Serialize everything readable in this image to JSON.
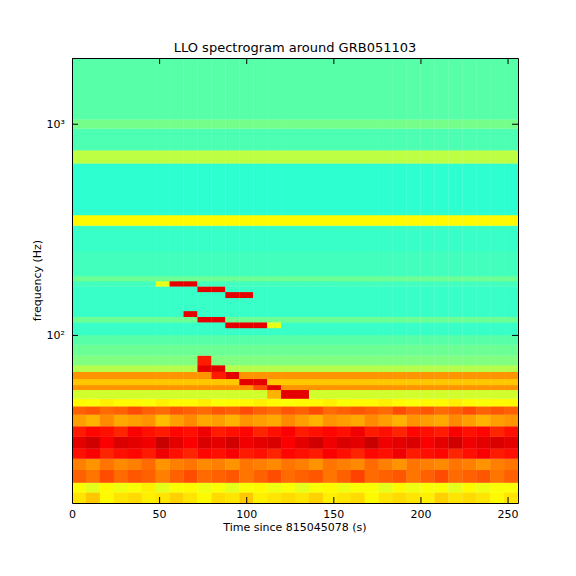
{
  "chart_data": {
    "type": "heatmap",
    "title": "LLO spectrogram around GRB051103",
    "x_label": "Time since 815045078 (s)",
    "y_label": "frequency (Hz)",
    "log": "y",
    "xlim": [
      0,
      256
    ],
    "ylim": [
      16,
      2048
    ],
    "xticks": [
      0,
      50,
      100,
      150,
      200,
      250
    ],
    "yticks": [
      {
        "value": 100,
        "label": "10²"
      },
      {
        "value": 1000,
        "label": "10³"
      }
    ],
    "zlim": [
      0,
      10
    ],
    "x_bins": [
      0,
      8,
      16,
      24,
      32,
      40,
      48,
      56,
      64,
      72,
      80,
      88,
      96,
      104,
      112,
      120,
      128,
      136,
      144,
      152,
      160,
      168,
      176,
      184,
      192,
      200,
      208,
      216,
      224,
      232,
      240,
      248,
      256
    ],
    "y_bins": [
      16,
      18,
      20,
      23,
      26,
      29,
      33,
      37,
      42,
      46,
      50,
      55,
      58,
      62,
      67,
      72,
      80,
      90,
      100,
      108,
      115,
      122,
      130,
      150,
      160,
      170,
      180,
      190,
      250,
      330,
      370,
      650,
      750,
      950,
      1050,
      2048
    ],
    "cells": [
      [
        6.5,
        6.8,
        6.3,
        6.5,
        6.6,
        6.4,
        6.5,
        6.7,
        6.5,
        6.3,
        6.6,
        6.5,
        6.8,
        6.4,
        6.5,
        6.6,
        6.5,
        6.7,
        6.4,
        6.5,
        6.6,
        6.3,
        6.5,
        6.6,
        6.5,
        6.4,
        6.7,
        6.5,
        6.6,
        6.5,
        6.3,
        6.5
      ],
      [
        6.2,
        6.0,
        6.3,
        6.1,
        6.2,
        6.4,
        6.0,
        6.2,
        6.3,
        6.1,
        6.2,
        6.0,
        6.2,
        6.3,
        6.1,
        6.2,
        6.0,
        6.2,
        6.3,
        6.1,
        6.2,
        6.2,
        6.0,
        6.3,
        6.1,
        6.2,
        6.2,
        6.0,
        6.3,
        6.1,
        6.2,
        6.2
      ],
      [
        7.8,
        7.6,
        8.0,
        7.7,
        7.9,
        7.8,
        7.5,
        7.8,
        8.0,
        7.7,
        7.8,
        7.9,
        7.6,
        7.8,
        8.0,
        7.7,
        7.8,
        7.9,
        7.6,
        7.8,
        8.1,
        7.7,
        7.8,
        7.9,
        7.6,
        7.8,
        8.0,
        7.7,
        7.8,
        7.9,
        7.6,
        7.8
      ],
      [
        7.5,
        7.3,
        7.6,
        7.4,
        7.5,
        7.7,
        7.3,
        7.5,
        7.6,
        7.4,
        7.5,
        7.3,
        7.6,
        7.5,
        7.4,
        7.6,
        7.5,
        7.3,
        7.6,
        7.5,
        7.4,
        7.7,
        7.5,
        7.3,
        7.6,
        7.5,
        7.4,
        7.6,
        7.5,
        7.3,
        7.5,
        7.6
      ],
      [
        8.6,
        8.8,
        8.4,
        8.6,
        8.7,
        8.5,
        8.9,
        8.6,
        8.4,
        8.7,
        8.6,
        8.8,
        8.5,
        8.6,
        8.4,
        8.7,
        8.6,
        8.5,
        8.8,
        8.6,
        8.4,
        8.7,
        8.6,
        8.9,
        8.5,
        8.6,
        8.7,
        8.4,
        8.6,
        8.8,
        8.5,
        8.6
      ],
      [
        9.0,
        9.2,
        8.8,
        9.1,
        9.0,
        8.9,
        9.3,
        9.0,
        8.8,
        9.1,
        9.0,
        9.2,
        8.9,
        9.0,
        9.1,
        8.8,
        9.0,
        9.2,
        8.9,
        9.1,
        9.0,
        9.3,
        8.9,
        9.0,
        9.1,
        8.8,
        9.0,
        9.2,
        8.9,
        9.0,
        9.1,
        9.0
      ],
      [
        8.5,
        8.7,
        8.6,
        8.4,
        8.8,
        8.6,
        8.5,
        8.7,
        8.6,
        8.9,
        8.5,
        8.6,
        8.7,
        8.4,
        8.6,
        8.8,
        8.5,
        8.6,
        8.7,
        8.6,
        8.9,
        8.5,
        8.6,
        8.4,
        8.7,
        8.6,
        8.5,
        8.8,
        8.6,
        8.7,
        8.4,
        8.6
      ],
      [
        7.2,
        7.0,
        7.4,
        7.1,
        7.2,
        7.3,
        6.9,
        7.2,
        7.4,
        7.1,
        7.2,
        7.0,
        7.3,
        7.2,
        7.1,
        7.4,
        7.2,
        7.0,
        7.3,
        7.2,
        7.1,
        7.4,
        7.2,
        7.0,
        7.3,
        7.2,
        7.1,
        7.4,
        7.2,
        7.0,
        7.2,
        7.3
      ],
      [
        7.8,
        7.9,
        7.7,
        7.8,
        8.0,
        7.8,
        7.7,
        7.9,
        7.8,
        7.7,
        7.9,
        7.8,
        8.0,
        7.8,
        7.7,
        7.9,
        7.8,
        8.0,
        7.7,
        7.8,
        7.9,
        7.8,
        7.7,
        8.0,
        7.8,
        7.9,
        7.7,
        7.8,
        8.0,
        7.8,
        7.9,
        7.8
      ],
      [
        6.3,
        6.2,
        6.4,
        6.3,
        6.3,
        6.2,
        6.4,
        6.3,
        6.3,
        6.4,
        6.2,
        6.3,
        6.3,
        6.4,
        6.3,
        6.2,
        6.3,
        6.3,
        6.4,
        6.2,
        6.3,
        6.3,
        6.4,
        6.3,
        6.2,
        6.3,
        6.3,
        6.4,
        6.3,
        6.2,
        6.3,
        6.3
      ],
      [
        5.8,
        5.8,
        5.8,
        5.8,
        5.8,
        5.8,
        5.8,
        5.8,
        5.8,
        5.8,
        5.8,
        5.8,
        5.8,
        5.8,
        7.0,
        9.0,
        9.0,
        5.8,
        5.8,
        5.8,
        5.8,
        5.8,
        5.8,
        5.8,
        5.8,
        5.8,
        5.8,
        5.8,
        5.8,
        5.8,
        5.8,
        5.8
      ],
      [
        7.3,
        7.3,
        7.3,
        7.3,
        7.3,
        7.3,
        7.3,
        7.3,
        7.3,
        7.3,
        7.3,
        7.3,
        7.3,
        8.0,
        9.0,
        7.3,
        7.3,
        7.3,
        7.3,
        7.3,
        7.3,
        7.3,
        7.3,
        7.3,
        7.3,
        7.3,
        7.3,
        7.3,
        7.3,
        7.3,
        7.3,
        7.3
      ],
      [
        6.8,
        6.8,
        6.8,
        6.8,
        6.8,
        6.8,
        6.8,
        6.8,
        6.8,
        6.8,
        6.8,
        6.8,
        9.0,
        9.0,
        6.8,
        6.8,
        6.8,
        6.8,
        6.8,
        6.8,
        6.8,
        6.8,
        6.8,
        6.8,
        6.8,
        6.8,
        6.8,
        6.8,
        6.8,
        6.8,
        6.8,
        6.8
      ],
      [
        7.3,
        7.3,
        7.3,
        7.3,
        7.3,
        7.3,
        7.3,
        7.3,
        7.3,
        7.3,
        8.5,
        9.0,
        7.3,
        7.3,
        7.3,
        7.3,
        7.3,
        7.3,
        7.3,
        7.3,
        7.3,
        7.3,
        7.3,
        7.3,
        7.3,
        7.3,
        7.3,
        7.3,
        7.3,
        7.3,
        7.3,
        7.3
      ],
      [
        5.5,
        5.5,
        5.5,
        5.5,
        5.5,
        5.5,
        5.5,
        5.5,
        5.5,
        9.0,
        9.0,
        5.5,
        5.5,
        5.5,
        5.5,
        5.5,
        5.5,
        5.5,
        5.5,
        5.5,
        5.5,
        5.5,
        5.5,
        5.5,
        5.5,
        5.5,
        5.5,
        5.5,
        5.5,
        5.5,
        5.5,
        5.5
      ],
      [
        5.0,
        5.0,
        5.0,
        5.0,
        5.0,
        5.0,
        5.0,
        5.0,
        5.0,
        8.5,
        5.0,
        5.0,
        5.0,
        5.0,
        5.0,
        5.0,
        5.0,
        5.0,
        5.0,
        5.0,
        5.0,
        5.0,
        5.0,
        5.0,
        5.0,
        5.0,
        5.0,
        5.0,
        5.0,
        5.0,
        5.0,
        5.0
      ],
      [
        4.8,
        4.8,
        4.8,
        4.8,
        4.8,
        4.8,
        4.8,
        4.8,
        4.8,
        4.8,
        4.8,
        4.8,
        4.8,
        4.8,
        4.8,
        4.8,
        4.8,
        4.8,
        4.8,
        4.8,
        4.8,
        4.8,
        4.8,
        4.8,
        4.8,
        4.8,
        4.8,
        4.8,
        4.8,
        4.8,
        4.8,
        4.8
      ],
      [
        4.6,
        4.6,
        4.6,
        4.6,
        4.6,
        4.6,
        4.6,
        4.6,
        4.6,
        4.6,
        4.6,
        4.6,
        4.6,
        4.6,
        4.6,
        4.6,
        4.6,
        4.6,
        4.6,
        4.6,
        4.6,
        4.6,
        4.6,
        4.6,
        4.6,
        4.6,
        4.6,
        4.6,
        4.6,
        4.6,
        4.6,
        4.6
      ],
      [
        4.3,
        4.3,
        4.3,
        4.3,
        4.3,
        4.3,
        4.3,
        4.3,
        4.3,
        4.3,
        4.3,
        4.3,
        4.3,
        4.3,
        4.3,
        4.3,
        4.3,
        4.3,
        4.3,
        4.3,
        4.3,
        4.3,
        4.3,
        4.3,
        4.3,
        4.3,
        4.3,
        4.3,
        4.3,
        4.3,
        4.3,
        4.3
      ],
      [
        4.3,
        4.3,
        4.3,
        4.3,
        4.3,
        4.3,
        4.3,
        4.3,
        4.3,
        4.3,
        4.3,
        9.0,
        9.0,
        9.0,
        6.0,
        4.3,
        4.3,
        4.3,
        4.3,
        4.3,
        4.3,
        4.3,
        4.3,
        4.3,
        4.3,
        4.3,
        4.3,
        4.3,
        4.3,
        4.3,
        4.3,
        4.3
      ],
      [
        4.8,
        4.8,
        4.8,
        4.8,
        4.8,
        4.8,
        4.8,
        4.8,
        4.8,
        9.0,
        9.0,
        4.8,
        4.8,
        4.8,
        4.8,
        4.8,
        4.8,
        4.8,
        4.8,
        4.8,
        4.8,
        4.8,
        4.8,
        4.8,
        4.8,
        4.8,
        4.8,
        4.8,
        4.8,
        4.8,
        4.8,
        4.8
      ],
      [
        4.3,
        4.3,
        4.3,
        4.3,
        4.3,
        4.3,
        4.3,
        4.3,
        9.0,
        4.3,
        4.3,
        4.3,
        4.3,
        4.3,
        4.3,
        4.3,
        4.3,
        4.3,
        4.3,
        4.3,
        4.3,
        4.3,
        4.3,
        4.3,
        4.3,
        4.3,
        4.3,
        4.3,
        4.3,
        4.3,
        4.3,
        4.3
      ],
      [
        4.3,
        4.3,
        4.3,
        4.3,
        4.3,
        4.3,
        4.3,
        4.3,
        4.3,
        4.3,
        4.3,
        4.3,
        4.3,
        4.3,
        4.3,
        4.3,
        4.3,
        4.3,
        4.3,
        4.3,
        4.3,
        4.3,
        4.3,
        4.3,
        4.3,
        4.3,
        4.3,
        4.3,
        4.3,
        4.3,
        4.3,
        4.3
      ],
      [
        4.3,
        4.3,
        4.3,
        4.3,
        4.3,
        4.3,
        4.3,
        4.3,
        4.3,
        4.3,
        4.3,
        9.0,
        9.0,
        4.3,
        4.3,
        4.3,
        4.3,
        4.3,
        4.3,
        4.3,
        4.3,
        4.3,
        4.3,
        4.3,
        4.3,
        4.3,
        4.3,
        4.3,
        4.3,
        4.3,
        4.3,
        4.3
      ],
      [
        4.3,
        4.3,
        4.3,
        4.3,
        4.3,
        4.3,
        4.3,
        4.3,
        4.3,
        9.0,
        9.0,
        4.3,
        4.3,
        4.3,
        4.3,
        4.3,
        4.3,
        4.3,
        4.3,
        4.3,
        4.3,
        4.3,
        4.3,
        4.3,
        4.3,
        4.3,
        4.3,
        4.3,
        4.3,
        4.3,
        4.3,
        4.3
      ],
      [
        4.4,
        4.4,
        4.4,
        4.4,
        4.4,
        4.4,
        6.0,
        9.0,
        9.0,
        4.4,
        4.4,
        4.4,
        4.4,
        4.4,
        4.4,
        4.4,
        4.4,
        4.4,
        4.4,
        4.4,
        4.4,
        4.4,
        4.4,
        4.4,
        4.4,
        4.4,
        4.4,
        4.4,
        4.4,
        4.4,
        4.4,
        4.4
      ],
      [
        4.8,
        4.8,
        4.8,
        4.8,
        4.8,
        4.8,
        4.8,
        4.8,
        4.8,
        4.8,
        4.8,
        4.8,
        4.8,
        4.8,
        4.8,
        4.8,
        4.8,
        4.8,
        4.8,
        4.8,
        4.8,
        4.8,
        4.8,
        4.8,
        4.8,
        4.8,
        4.8,
        4.8,
        4.8,
        4.8,
        4.8,
        4.8
      ],
      [
        4.4,
        4.4,
        4.4,
        4.4,
        4.4,
        4.4,
        4.4,
        4.4,
        4.4,
        4.4,
        4.4,
        4.4,
        4.4,
        4.4,
        4.4,
        4.4,
        4.4,
        4.4,
        4.4,
        4.4,
        4.4,
        4.4,
        4.4,
        4.4,
        4.4,
        4.4,
        4.4,
        4.4,
        4.4,
        4.4,
        4.4,
        4.4
      ],
      [
        4.3,
        4.3,
        4.3,
        4.3,
        4.3,
        4.3,
        4.3,
        4.3,
        4.3,
        4.3,
        4.3,
        4.3,
        4.3,
        4.3,
        4.3,
        4.3,
        4.3,
        4.3,
        4.3,
        4.3,
        4.3,
        4.3,
        4.3,
        4.3,
        4.3,
        4.3,
        4.3,
        4.3,
        4.3,
        4.3,
        4.3,
        4.3
      ],
      [
        6.3,
        6.3,
        6.3,
        6.3,
        6.3,
        6.3,
        6.3,
        6.3,
        6.3,
        6.3,
        6.3,
        6.3,
        6.3,
        6.3,
        6.3,
        6.3,
        6.3,
        6.3,
        6.3,
        6.3,
        6.3,
        6.3,
        6.3,
        6.3,
        6.3,
        6.3,
        6.3,
        6.3,
        6.3,
        6.3,
        6.3,
        6.3
      ],
      [
        4.2,
        4.2,
        4.2,
        4.2,
        4.2,
        4.2,
        4.2,
        4.2,
        4.2,
        4.2,
        4.2,
        4.2,
        4.2,
        4.2,
        4.2,
        4.2,
        4.2,
        4.2,
        4.2,
        4.2,
        4.2,
        4.2,
        4.2,
        4.2,
        4.2,
        4.2,
        4.2,
        4.2,
        4.2,
        4.2,
        4.2,
        4.2
      ],
      [
        5.6,
        5.6,
        5.6,
        5.6,
        5.6,
        5.6,
        5.6,
        5.6,
        5.6,
        5.6,
        5.6,
        5.6,
        5.6,
        5.6,
        5.6,
        5.6,
        5.6,
        5.6,
        5.6,
        5.6,
        5.6,
        5.6,
        5.6,
        5.6,
        5.6,
        5.6,
        5.6,
        5.6,
        5.6,
        5.6,
        5.6,
        5.6
      ],
      [
        4.5,
        4.5,
        4.5,
        4.5,
        4.5,
        4.5,
        4.5,
        4.5,
        4.5,
        4.5,
        4.5,
        4.5,
        4.5,
        4.5,
        4.5,
        4.5,
        4.5,
        4.5,
        4.5,
        4.5,
        4.5,
        4.5,
        4.5,
        4.5,
        4.5,
        4.5,
        4.5,
        4.5,
        4.5,
        4.5,
        4.5,
        4.5
      ],
      [
        4.9,
        4.9,
        4.9,
        4.9,
        4.9,
        4.9,
        4.9,
        4.9,
        4.9,
        4.9,
        4.9,
        4.9,
        4.9,
        4.9,
        4.9,
        4.9,
        4.9,
        4.9,
        4.9,
        4.9,
        4.9,
        4.9,
        4.9,
        4.9,
        4.9,
        4.9,
        4.9,
        4.9,
        4.9,
        4.9,
        4.9,
        4.9
      ],
      [
        4.6,
        4.6,
        4.6,
        4.6,
        4.6,
        4.6,
        4.6,
        4.6,
        4.6,
        4.6,
        4.6,
        4.6,
        4.6,
        4.6,
        4.6,
        4.6,
        4.6,
        4.6,
        4.6,
        4.6,
        4.6,
        4.6,
        4.6,
        4.6,
        4.6,
        4.6,
        4.6,
        4.6,
        4.6,
        4.6,
        4.6,
        4.6
      ]
    ]
  }
}
